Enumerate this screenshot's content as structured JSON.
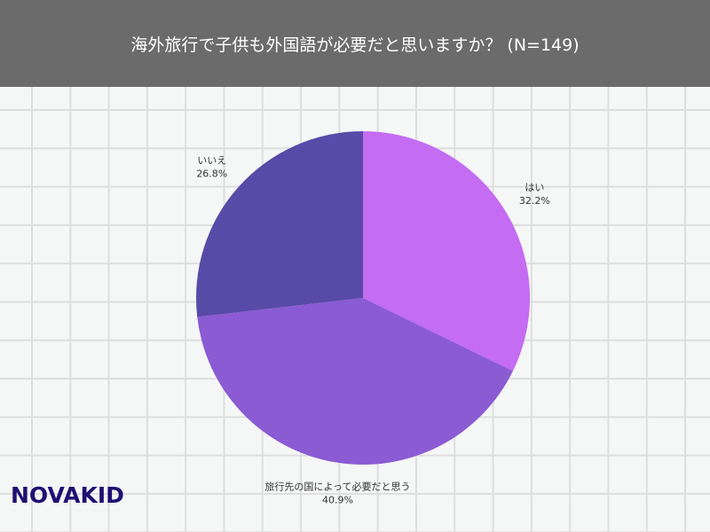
{
  "header": {
    "title": "海外旅行で子供も外国語が必要だと思いますか？ (N=149)"
  },
  "logo": {
    "text": "NOVAKID"
  },
  "chart_data": {
    "type": "pie",
    "title": "海外旅行で子供も外国語が必要だと思いますか？ (N=149)",
    "start": "top",
    "direction": "clockwise",
    "slices": [
      {
        "label": "はい",
        "value": 32.2,
        "display": "32.2%",
        "color": "#c46cf2"
      },
      {
        "label": "旅行先の国によって必要だと思う",
        "value": 40.9,
        "display": "40.9%",
        "color": "#8a5bd3"
      },
      {
        "label": "いいえ",
        "value": 26.8,
        "display": "26.8%",
        "color": "#584aa7"
      }
    ]
  }
}
